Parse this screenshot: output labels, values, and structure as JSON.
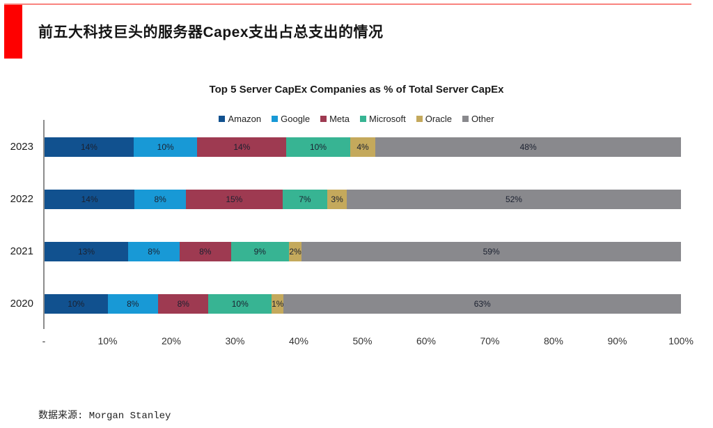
{
  "page": {
    "header_title": "前五大科技巨头的服务器Capex支出占总支出的情况",
    "source_label": "数据来源: Morgan Stanley",
    "accent_red": "#fe0000",
    "top_rule_color": "#f9837e"
  },
  "chart_data": {
    "type": "bar",
    "variant": "horizontal-stacked-100",
    "title": "Top 5 Server CapEx Companies as % of Total Server CapEx",
    "categories": [
      "2023",
      "2022",
      "2021",
      "2020"
    ],
    "series": [
      {
        "name": "Amazon",
        "color": "#11518f",
        "values": [
          14,
          14,
          13,
          10
        ]
      },
      {
        "name": "Google",
        "color": "#1899d6",
        "values": [
          10,
          8,
          8,
          8
        ]
      },
      {
        "name": "Meta",
        "color": "#9e3a51",
        "values": [
          14,
          15,
          8,
          8
        ]
      },
      {
        "name": "Microsoft",
        "color": "#37b493",
        "values": [
          10,
          7,
          9,
          10
        ]
      },
      {
        "name": "Oracle",
        "color": "#c4a95c",
        "values": [
          4,
          3,
          2,
          1
        ]
      },
      {
        "name": "Other",
        "color": "#89898d",
        "values": [
          48,
          52,
          59,
          63
        ]
      }
    ],
    "value_suffix": "%",
    "xlim": [
      0,
      100
    ],
    "x_tick_labels": [
      "-",
      "10%",
      "20%",
      "30%",
      "40%",
      "50%",
      "60%",
      "70%",
      "80%",
      "90%",
      "100%"
    ],
    "legend_position": "top",
    "grid": false
  }
}
